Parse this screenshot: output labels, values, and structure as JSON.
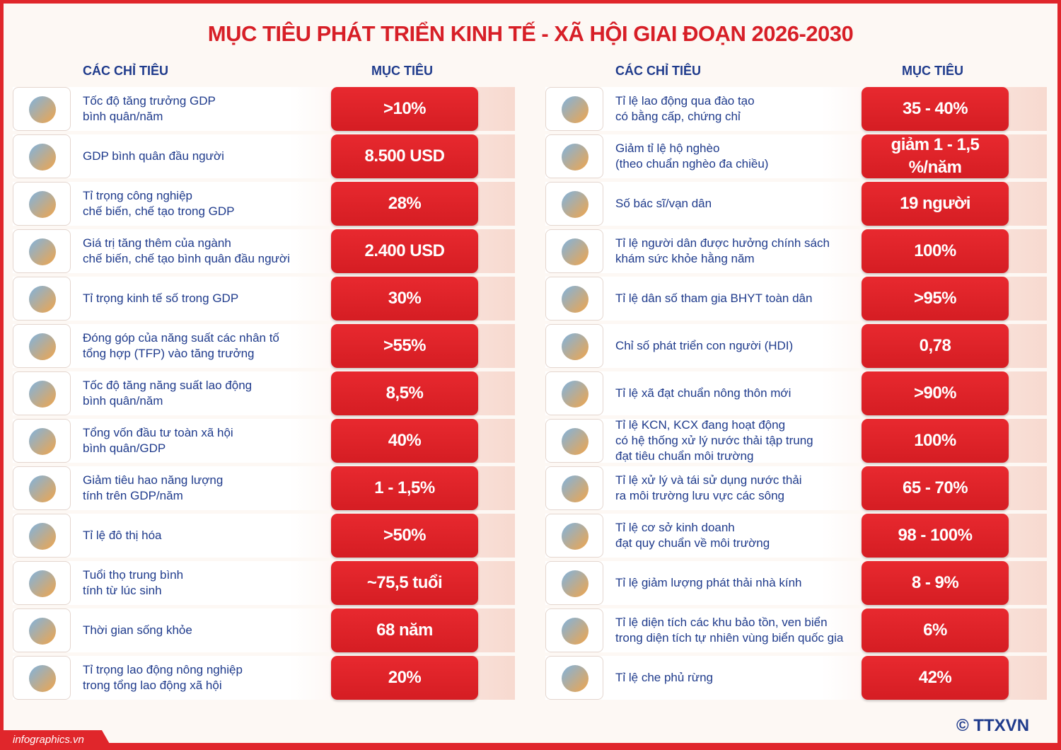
{
  "header": {
    "title": "MỤC TIÊU PHÁT TRIỂN KINH TẾ - XÃ HỘI GIAI ĐOẠN 2026-2030"
  },
  "columns": [
    {
      "indicator_header": "CÁC CHỈ TIÊU",
      "target_header": "MỤC TIÊU",
      "rows": [
        {
          "label": [
            "Tốc độ tăng trưởng GDP",
            "bình quân/năm"
          ],
          "target": ">10%"
        },
        {
          "label": [
            "GDP bình quân đầu người"
          ],
          "target": "8.500 USD"
        },
        {
          "label": [
            "Tỉ trọng công nghiệp",
            "chế biến, chế tạo trong GDP"
          ],
          "target": "28%"
        },
        {
          "label": [
            "Giá trị tăng thêm của ngành",
            "chế biến, chế tạo bình quân đầu người"
          ],
          "target": "2.400 USD"
        },
        {
          "label": [
            "Tỉ trọng kinh tế số trong GDP"
          ],
          "target": "30%"
        },
        {
          "label": [
            "Đóng góp của năng suất các nhân tố",
            "tổng hợp (TFP) vào tăng trưởng"
          ],
          "target": ">55%"
        },
        {
          "label": [
            "Tốc độ tăng năng suất lao động",
            "bình quân/năm"
          ],
          "target": "8,5%"
        },
        {
          "label": [
            "Tổng vốn đầu tư toàn xã hội",
            "bình quân/GDP"
          ],
          "target": "40%"
        },
        {
          "label": [
            "Giảm tiêu hao năng lượng",
            "tính trên GDP/năm"
          ],
          "target": "1 - 1,5%"
        },
        {
          "label": [
            "Tỉ lệ đô thị hóa"
          ],
          "target": ">50%"
        },
        {
          "label": [
            "Tuổi thọ trung bình",
            "tính từ lúc sinh"
          ],
          "target": "~75,5 tuổi"
        },
        {
          "label": [
            "Thời gian sống khỏe"
          ],
          "target": "68 năm"
        },
        {
          "label": [
            "Tỉ trọng lao động nông nghiệp",
            "trong tổng lao động xã hội"
          ],
          "target": "20%"
        }
      ]
    },
    {
      "indicator_header": "CÁC CHỈ TIÊU",
      "target_header": "MỤC TIÊU",
      "rows": [
        {
          "label": [
            "Tỉ lệ lao động qua đào tạo",
            "có bằng cấp, chứng chỉ"
          ],
          "target": "35 - 40%"
        },
        {
          "label": [
            "Giảm tỉ lệ hộ nghèo",
            "(theo chuẩn nghèo đa chiều)"
          ],
          "target": [
            "giảm 1 - 1,5",
            "%/năm"
          ]
        },
        {
          "label": [
            "Số bác sĩ/vạn dân"
          ],
          "target": "19 người"
        },
        {
          "label": [
            "Tỉ lệ người dân được hưởng chính sách",
            "khám sức khỏe hằng năm"
          ],
          "target": "100%"
        },
        {
          "label": [
            "Tỉ lệ dân số tham gia BHYT toàn dân"
          ],
          "target": ">95%"
        },
        {
          "label": [
            "Chỉ số phát triển con người (HDI)"
          ],
          "target": "0,78"
        },
        {
          "label": [
            "Tỉ lệ xã đạt chuẩn nông thôn mới"
          ],
          "target": ">90%"
        },
        {
          "label": [
            "Tỉ lệ KCN, KCX đang hoạt động",
            "có hệ thống xử lý nước thải tập trung",
            "đạt tiêu chuẩn môi trường"
          ],
          "target": "100%"
        },
        {
          "label": [
            "Tỉ lệ xử lý và tái sử dụng nước thải",
            "ra môi trường lưu vực các sông"
          ],
          "target": "65 - 70%"
        },
        {
          "label": [
            "Tỉ lệ cơ sở kinh doanh",
            "đạt quy chuẩn về môi trường"
          ],
          "target": "98 - 100%"
        },
        {
          "label": [
            "Tỉ lệ giảm lượng phát thải nhà kính"
          ],
          "target": "8 - 9%"
        },
        {
          "label": [
            "Tỉ lệ diện tích các khu bảo tồn, ven biển",
            "trong diện tích tự nhiên vùng biển quốc gia"
          ],
          "target": "6%"
        },
        {
          "label": [
            "Tỉ lệ che phủ rừng"
          ],
          "target": "42%"
        }
      ]
    }
  ],
  "footer": {
    "site": "infographics.vn",
    "logo": "© TTXVN"
  }
}
